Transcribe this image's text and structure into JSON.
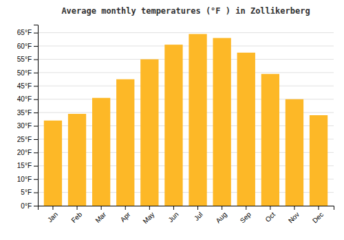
{
  "chart_data": {
    "type": "bar",
    "title": "Average monthly temperatures (°F ) in Zollikerberg",
    "categories": [
      "Jan",
      "Feb",
      "Mar",
      "Apr",
      "May",
      "Jun",
      "Jul",
      "Aug",
      "Sep",
      "Oct",
      "Nov",
      "Dec"
    ],
    "values": [
      32,
      34.5,
      40.5,
      47.5,
      55,
      60.5,
      64.5,
      63,
      57.5,
      49.5,
      40,
      34
    ],
    "color": "#FDB827",
    "ylim": [
      0,
      68
    ],
    "yticks": [
      {
        "value": 0,
        "label": "0°F"
      },
      {
        "value": 5,
        "label": "5°F"
      },
      {
        "value": 10,
        "label": "10°F"
      },
      {
        "value": 15,
        "label": "15°F"
      },
      {
        "value": 20,
        "label": "20°F"
      },
      {
        "value": 25,
        "label": "25°F"
      },
      {
        "value": 30,
        "label": "30°F"
      },
      {
        "value": 35,
        "label": "35°F"
      },
      {
        "value": 40,
        "label": "40°F"
      },
      {
        "value": 45,
        "label": "45°F"
      },
      {
        "value": 50,
        "label": "50°F"
      },
      {
        "value": 55,
        "label": "55°F"
      },
      {
        "value": 60,
        "label": "60°F"
      },
      {
        "value": 65,
        "label": "65°F"
      }
    ],
    "grid": true
  }
}
